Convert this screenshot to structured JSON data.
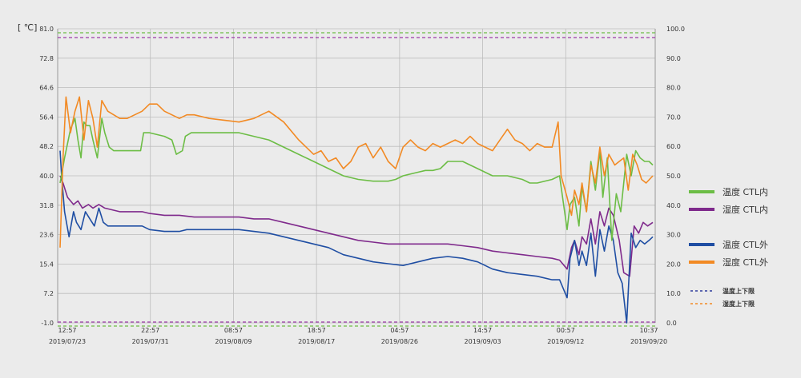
{
  "unit_label": "[ ℃]",
  "colors": {
    "temp_in": "#6cbd45",
    "humid_in": "#7f2a8c",
    "temp_out": "#1f4ea3",
    "humid_out": "#f28a24",
    "temp_limit": "#2f3d9c",
    "humid_limit": "#f28a24",
    "grid": "#bdbdbd",
    "limit_green": "#6cbd45",
    "limit_purple": "#9b3aa6"
  },
  "chart_data": {
    "type": "line",
    "ylim_left": [
      -1.0,
      81.0
    ],
    "ylim_right": [
      0.0,
      100.0
    ],
    "left_ticks": [
      "81.0",
      "72.8",
      "64.6",
      "56.4",
      "48.2",
      "40.0",
      "31.8",
      "23.6",
      "15.4",
      "7.2",
      "-1.0"
    ],
    "right_ticks": [
      "100.0",
      "90.0",
      "80.0",
      "70.0",
      "60.0",
      "50.0",
      "40.0",
      "30.0",
      "20.0",
      "10.0",
      "0.0"
    ],
    "x_ticks": [
      {
        "time": "12:57",
        "date": "2019/07/23"
      },
      {
        "time": "22:57",
        "date": "2019/07/31"
      },
      {
        "time": "08:57",
        "date": "2019/08/09"
      },
      {
        "time": "18:57",
        "date": "2019/08/17"
      },
      {
        "time": "04:57",
        "date": "2019/08/26"
      },
      {
        "time": "14:57",
        "date": "2019/09/03"
      },
      {
        "time": "00:57",
        "date": "2019/09/12"
      },
      {
        "time": "10:37",
        "date": "2019/09/20"
      }
    ],
    "limits": {
      "temperature": [
        -1.0,
        79.0
      ],
      "humidity": [
        0.0,
        98.0
      ]
    },
    "series": [
      {
        "name": "温度 CTL内",
        "key": "temp_in",
        "axis": "left",
        "values": [
          [
            0,
            38
          ],
          [
            0.3,
            45
          ],
          [
            0.7,
            53
          ],
          [
            1.0,
            56
          ],
          [
            1.2,
            50
          ],
          [
            1.4,
            45
          ],
          [
            1.6,
            55
          ],
          [
            1.8,
            54
          ],
          [
            2.0,
            54
          ],
          [
            2.2,
            50
          ],
          [
            2.5,
            45
          ],
          [
            2.8,
            56
          ],
          [
            3.0,
            52
          ],
          [
            3.3,
            48
          ],
          [
            3.6,
            47
          ],
          [
            4,
            47
          ],
          [
            5,
            47
          ],
          [
            5.4,
            47
          ],
          [
            5.6,
            52
          ],
          [
            6,
            52
          ],
          [
            7,
            51
          ],
          [
            7.5,
            50
          ],
          [
            7.8,
            46
          ],
          [
            8.2,
            47
          ],
          [
            8.4,
            51
          ],
          [
            8.8,
            52
          ],
          [
            10,
            52
          ],
          [
            12,
            52
          ],
          [
            13,
            51
          ],
          [
            14,
            50
          ],
          [
            15,
            48
          ],
          [
            16,
            46
          ],
          [
            17,
            44
          ],
          [
            18,
            42
          ],
          [
            19,
            40
          ],
          [
            20,
            39
          ],
          [
            21,
            38.5
          ],
          [
            22,
            38.5
          ],
          [
            22.5,
            39
          ],
          [
            23,
            40
          ],
          [
            24,
            41
          ],
          [
            24.5,
            41.5
          ],
          [
            25,
            41.5
          ],
          [
            25.5,
            42
          ],
          [
            26,
            44
          ],
          [
            27,
            44
          ],
          [
            27.5,
            43
          ],
          [
            28,
            42
          ],
          [
            29,
            40
          ],
          [
            30,
            40
          ],
          [
            31,
            39
          ],
          [
            31.5,
            38
          ],
          [
            32,
            38
          ],
          [
            33,
            39
          ],
          [
            33.5,
            40
          ],
          [
            34,
            25
          ],
          [
            34.2,
            32
          ],
          [
            34.5,
            34
          ],
          [
            34.8,
            26
          ],
          [
            35,
            37
          ],
          [
            35.3,
            30
          ],
          [
            35.6,
            44
          ],
          [
            35.9,
            36
          ],
          [
            36.2,
            47
          ],
          [
            36.4,
            34
          ],
          [
            36.7,
            45
          ],
          [
            37,
            22
          ],
          [
            37.3,
            35
          ],
          [
            37.6,
            30
          ],
          [
            38,
            46
          ],
          [
            38.3,
            40
          ],
          [
            38.6,
            47
          ],
          [
            38.9,
            45
          ],
          [
            39.2,
            44
          ],
          [
            39.5,
            44
          ],
          [
            39.75,
            43
          ]
        ]
      },
      {
        "name": "湿度 CTL内",
        "key": "humid_in",
        "axis": "left",
        "values": [
          [
            0,
            40
          ],
          [
            0.2,
            38
          ],
          [
            0.5,
            34
          ],
          [
            0.9,
            32
          ],
          [
            1.2,
            33
          ],
          [
            1.5,
            31
          ],
          [
            1.9,
            32
          ],
          [
            2.2,
            31
          ],
          [
            2.6,
            32
          ],
          [
            3,
            31
          ],
          [
            4,
            30
          ],
          [
            5,
            30
          ],
          [
            5.5,
            30
          ],
          [
            6,
            29.5
          ],
          [
            7,
            29
          ],
          [
            8,
            29
          ],
          [
            9,
            28.5
          ],
          [
            10,
            28.5
          ],
          [
            11,
            28.5
          ],
          [
            12,
            28.5
          ],
          [
            13,
            28
          ],
          [
            14,
            28
          ],
          [
            15,
            27
          ],
          [
            16,
            26
          ],
          [
            17,
            25
          ],
          [
            18,
            24
          ],
          [
            19,
            23
          ],
          [
            20,
            22
          ],
          [
            21,
            21.5
          ],
          [
            22,
            21
          ],
          [
            23,
            21
          ],
          [
            24,
            21
          ],
          [
            25,
            21
          ],
          [
            26,
            21
          ],
          [
            27,
            20.5
          ],
          [
            28,
            20
          ],
          [
            29,
            19
          ],
          [
            30,
            18.5
          ],
          [
            31,
            18
          ],
          [
            32,
            17.5
          ],
          [
            33,
            17
          ],
          [
            33.5,
            16.5
          ],
          [
            34,
            14
          ],
          [
            34.3,
            20
          ],
          [
            34.5,
            22
          ],
          [
            34.8,
            18
          ],
          [
            35,
            23
          ],
          [
            35.3,
            21
          ],
          [
            35.6,
            28
          ],
          [
            35.9,
            21
          ],
          [
            36.2,
            30
          ],
          [
            36.5,
            26
          ],
          [
            36.8,
            31
          ],
          [
            37.1,
            29
          ],
          [
            37.5,
            22
          ],
          [
            37.8,
            13
          ],
          [
            38.2,
            12
          ],
          [
            38.5,
            26
          ],
          [
            38.8,
            24
          ],
          [
            39.1,
            27
          ],
          [
            39.4,
            26
          ],
          [
            39.75,
            27
          ]
        ]
      },
      {
        "name": "温度 CTL外",
        "key": "temp_out",
        "axis": "left",
        "values": [
          [
            0,
            47
          ],
          [
            0.1,
            40
          ],
          [
            0.3,
            30
          ],
          [
            0.6,
            23
          ],
          [
            0.9,
            30
          ],
          [
            1.1,
            27
          ],
          [
            1.4,
            25
          ],
          [
            1.7,
            30
          ],
          [
            2.0,
            28
          ],
          [
            2.3,
            26
          ],
          [
            2.6,
            31
          ],
          [
            2.9,
            27
          ],
          [
            3.2,
            26
          ],
          [
            3.6,
            26
          ],
          [
            4,
            26
          ],
          [
            5,
            26
          ],
          [
            5.5,
            26
          ],
          [
            6,
            25
          ],
          [
            7,
            24.5
          ],
          [
            8,
            24.5
          ],
          [
            8.5,
            25
          ],
          [
            9,
            25
          ],
          [
            10,
            25
          ],
          [
            11,
            25
          ],
          [
            12,
            25
          ],
          [
            13,
            24.5
          ],
          [
            14,
            24
          ],
          [
            15,
            23
          ],
          [
            16,
            22
          ],
          [
            17,
            21
          ],
          [
            18,
            20
          ],
          [
            19,
            18
          ],
          [
            20,
            17
          ],
          [
            21,
            16
          ],
          [
            22,
            15.5
          ],
          [
            23,
            15
          ],
          [
            24,
            16
          ],
          [
            25,
            17
          ],
          [
            26,
            17.5
          ],
          [
            27,
            17
          ],
          [
            28,
            16
          ],
          [
            29,
            14
          ],
          [
            30,
            13
          ],
          [
            31,
            12.5
          ],
          [
            32,
            12
          ],
          [
            33,
            11
          ],
          [
            33.5,
            11
          ],
          [
            34,
            6
          ],
          [
            34.2,
            17
          ],
          [
            34.5,
            22
          ],
          [
            34.8,
            15
          ],
          [
            35,
            19
          ],
          [
            35.3,
            15
          ],
          [
            35.6,
            24
          ],
          [
            35.9,
            12
          ],
          [
            36.2,
            25
          ],
          [
            36.5,
            19
          ],
          [
            36.8,
            26
          ],
          [
            37.1,
            22
          ],
          [
            37.4,
            13
          ],
          [
            37.7,
            10
          ],
          [
            38.0,
            -1
          ],
          [
            38.3,
            24
          ],
          [
            38.6,
            20
          ],
          [
            38.9,
            22
          ],
          [
            39.2,
            21
          ],
          [
            39.5,
            22
          ],
          [
            39.75,
            23
          ]
        ]
      },
      {
        "name": "湿度 CTL外",
        "key": "humid_out",
        "axis": "left",
        "values": [
          [
            0,
            20
          ],
          [
            0.2,
            45
          ],
          [
            0.4,
            62
          ],
          [
            0.7,
            52
          ],
          [
            1.0,
            58
          ],
          [
            1.3,
            62
          ],
          [
            1.6,
            50
          ],
          [
            1.9,
            61
          ],
          [
            2.2,
            56
          ],
          [
            2.5,
            48
          ],
          [
            2.8,
            61
          ],
          [
            3.2,
            58
          ],
          [
            3.6,
            57
          ],
          [
            4.0,
            56
          ],
          [
            4.5,
            56
          ],
          [
            5,
            57
          ],
          [
            5.5,
            58
          ],
          [
            6,
            60
          ],
          [
            6.5,
            60
          ],
          [
            7,
            58
          ],
          [
            7.5,
            57
          ],
          [
            8,
            56
          ],
          [
            8.5,
            57
          ],
          [
            9,
            57
          ],
          [
            10,
            56
          ],
          [
            11,
            55.5
          ],
          [
            12,
            55
          ],
          [
            13,
            56
          ],
          [
            14,
            58
          ],
          [
            15,
            55
          ],
          [
            16,
            50
          ],
          [
            17,
            46
          ],
          [
            17.5,
            47
          ],
          [
            18,
            44
          ],
          [
            18.5,
            45
          ],
          [
            19,
            42
          ],
          [
            19.5,
            44
          ],
          [
            20,
            48
          ],
          [
            20.5,
            49
          ],
          [
            21,
            45
          ],
          [
            21.5,
            48
          ],
          [
            22,
            44
          ],
          [
            22.5,
            42
          ],
          [
            23,
            48
          ],
          [
            23.5,
            50
          ],
          [
            24,
            48
          ],
          [
            24.5,
            47
          ],
          [
            25,
            49
          ],
          [
            25.5,
            48
          ],
          [
            26,
            49
          ],
          [
            26.5,
            50
          ],
          [
            27,
            49
          ],
          [
            27.5,
            51
          ],
          [
            28,
            49
          ],
          [
            28.5,
            48
          ],
          [
            29,
            47
          ],
          [
            29.5,
            50
          ],
          [
            30,
            53
          ],
          [
            30.5,
            50
          ],
          [
            31,
            49
          ],
          [
            31.5,
            47
          ],
          [
            32,
            49
          ],
          [
            32.5,
            48
          ],
          [
            33,
            48
          ],
          [
            33.4,
            55
          ],
          [
            33.6,
            40
          ],
          [
            34,
            34
          ],
          [
            34.3,
            29
          ],
          [
            34.5,
            36
          ],
          [
            34.8,
            32
          ],
          [
            35,
            38
          ],
          [
            35.3,
            30
          ],
          [
            35.6,
            43
          ],
          [
            35.9,
            38
          ],
          [
            36.2,
            48
          ],
          [
            36.5,
            40
          ],
          [
            36.8,
            46
          ],
          [
            37.2,
            43
          ],
          [
            37.5,
            44
          ],
          [
            37.8,
            45
          ],
          [
            38.1,
            36
          ],
          [
            38.4,
            46
          ],
          [
            38.7,
            43
          ],
          [
            39.0,
            39
          ],
          [
            39.3,
            38
          ],
          [
            39.75,
            40
          ]
        ]
      }
    ],
    "legend": [
      {
        "label": "温度 CTL内",
        "key": "temp_in"
      },
      {
        "label": "湿度 CTL内",
        "key": "humid_in"
      },
      {
        "label": "温度 CTL外",
        "key": "temp_out"
      },
      {
        "label": "湿度 CTL外",
        "key": "humid_out"
      },
      {
        "label": "温度上下限",
        "key": "temp_limit",
        "dashed": true
      },
      {
        "label": "湿度上下限",
        "key": "humid_limit",
        "dashed": true
      }
    ]
  }
}
